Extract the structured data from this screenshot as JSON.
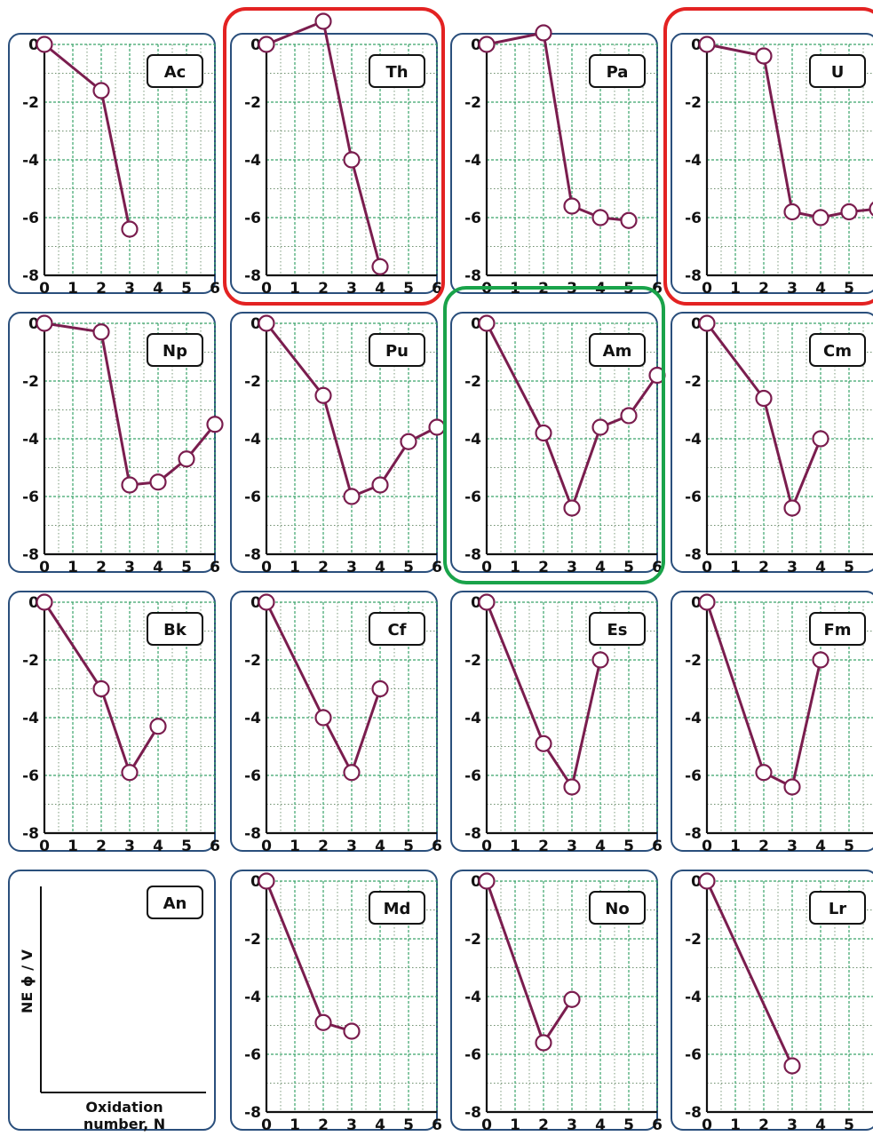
{
  "chart_data": {
    "type": "line",
    "x_ticks": [
      "0",
      "1",
      "2",
      "3",
      "4",
      "5",
      "6"
    ],
    "y_ticks": [
      "0",
      "-2",
      "-4",
      "-6",
      "-8"
    ],
    "xlim": [
      0,
      6
    ],
    "ylim": [
      -8,
      0
    ],
    "grid": true,
    "colors": {
      "line": "#7a1d4e",
      "marker_fill": "#ffffff",
      "panel_border": "#2a4f7c",
      "grid_major": "#3aa36a",
      "grid_minor": "#6e8f6e",
      "highlight_red": "#e32222",
      "highlight_green": "#19a34a"
    },
    "panels": [
      {
        "element": "Ac",
        "points": [
          [
            0,
            0
          ],
          [
            2,
            -1.6
          ],
          [
            3,
            -6.4
          ]
        ],
        "highlight": "red-none"
      },
      {
        "element": "Th",
        "points": [
          [
            0,
            0
          ],
          [
            2,
            0.8
          ],
          [
            3,
            -4.0
          ],
          [
            4,
            -7.7
          ]
        ],
        "highlight": "red"
      },
      {
        "element": "Pa",
        "points": [
          [
            0,
            0
          ],
          [
            2,
            0.4
          ],
          [
            3,
            -5.6
          ],
          [
            4,
            -6.0
          ],
          [
            5,
            -6.1
          ]
        ],
        "highlight": ""
      },
      {
        "element": "U",
        "points": [
          [
            0,
            0
          ],
          [
            2,
            -0.4
          ],
          [
            3,
            -5.8
          ],
          [
            4,
            -6.0
          ],
          [
            5,
            -5.8
          ],
          [
            6,
            -5.7
          ]
        ],
        "highlight": "red"
      },
      {
        "element": "Np",
        "points": [
          [
            0,
            0
          ],
          [
            2,
            -0.3
          ],
          [
            3,
            -5.6
          ],
          [
            4,
            -5.5
          ],
          [
            5,
            -4.7
          ],
          [
            6,
            -3.5
          ]
        ],
        "highlight": ""
      },
      {
        "element": "Pu",
        "points": [
          [
            0,
            0
          ],
          [
            2,
            -2.5
          ],
          [
            3,
            -6.0
          ],
          [
            4,
            -5.6
          ],
          [
            5,
            -4.1
          ],
          [
            6,
            -3.6
          ]
        ],
        "highlight": ""
      },
      {
        "element": "Am",
        "points": [
          [
            0,
            0
          ],
          [
            2,
            -3.8
          ],
          [
            3,
            -6.4
          ],
          [
            4,
            -3.6
          ],
          [
            5,
            -3.2
          ],
          [
            6,
            -1.8
          ]
        ],
        "highlight": "green"
      },
      {
        "element": "Cm",
        "points": [
          [
            0,
            0
          ],
          [
            2,
            -2.6
          ],
          [
            3,
            -6.4
          ],
          [
            4,
            -4.0
          ]
        ],
        "highlight": ""
      },
      {
        "element": "Bk",
        "points": [
          [
            0,
            0
          ],
          [
            2,
            -3.0
          ],
          [
            3,
            -5.9
          ],
          [
            4,
            -4.3
          ]
        ],
        "highlight": ""
      },
      {
        "element": "Cf",
        "points": [
          [
            0,
            0
          ],
          [
            2,
            -4.0
          ],
          [
            3,
            -5.9
          ],
          [
            4,
            -3.0
          ]
        ],
        "highlight": ""
      },
      {
        "element": "Es",
        "points": [
          [
            0,
            0
          ],
          [
            2,
            -4.9
          ],
          [
            3,
            -6.4
          ],
          [
            4,
            -2.0
          ]
        ],
        "highlight": ""
      },
      {
        "element": "Fm",
        "points": [
          [
            0,
            0
          ],
          [
            2,
            -5.9
          ],
          [
            3,
            -6.4
          ],
          [
            4,
            -2.0
          ]
        ],
        "highlight": ""
      },
      {
        "element": "An",
        "points": [],
        "highlight": "",
        "legend": true
      },
      {
        "element": "Md",
        "points": [
          [
            0,
            0
          ],
          [
            2,
            -4.9
          ],
          [
            3,
            -5.2
          ]
        ],
        "highlight": ""
      },
      {
        "element": "No",
        "points": [
          [
            0,
            0
          ],
          [
            2,
            -5.6
          ],
          [
            3,
            -4.1
          ]
        ],
        "highlight": ""
      },
      {
        "element": "Lr",
        "points": [
          [
            0,
            0
          ],
          [
            3,
            -6.4
          ]
        ],
        "highlight": ""
      }
    ],
    "legend_panel": {
      "ylabel": "NE ϕ / V",
      "xlabel_line1": "Oxidation",
      "xlabel_line2": "number, N"
    }
  }
}
